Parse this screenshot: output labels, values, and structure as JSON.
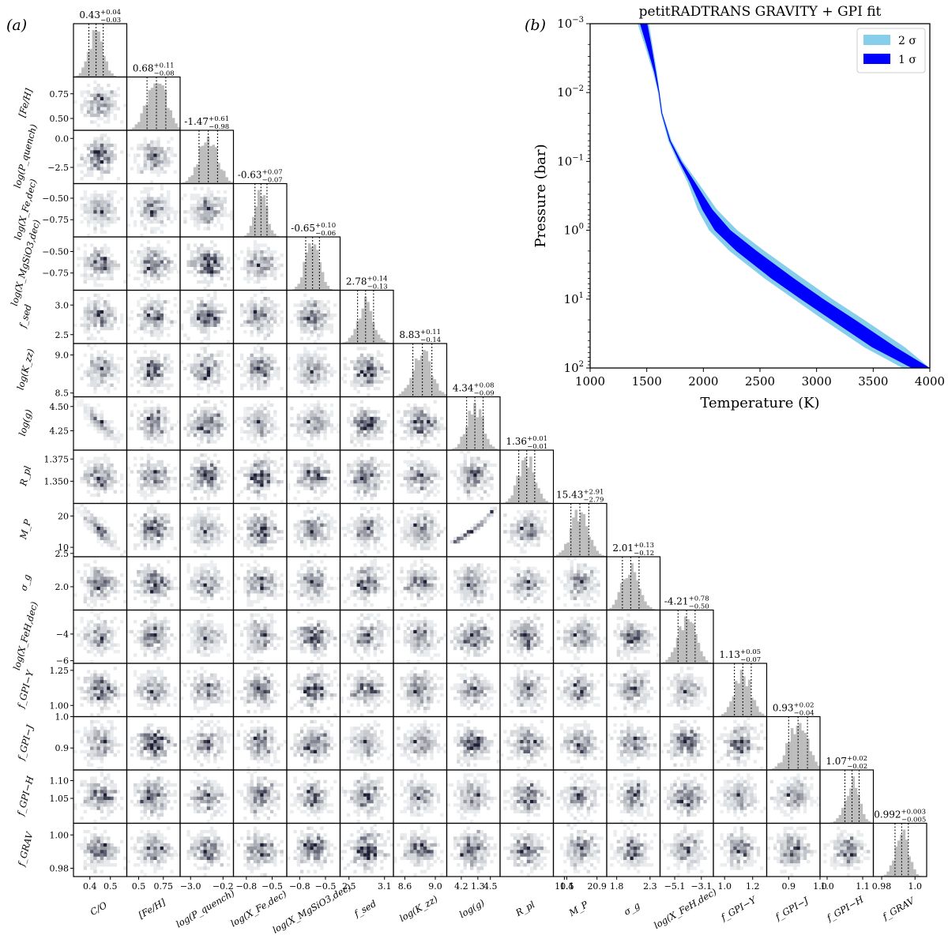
{
  "figure": {
    "panel_a_label": "(a)",
    "panel_b_label": "(b)"
  },
  "chart_data": [
    {
      "type": "corner",
      "panel": "(a)",
      "parameters": [
        {
          "label": "C/O",
          "ticks": [
            "0.4",
            "0.5"
          ],
          "tick_values": [
            0.4,
            0.5
          ],
          "range": [
            0.32,
            0.58
          ],
          "median": "0.43",
          "plus": "+0.04",
          "minus": "−0.03",
          "title_prefix": "",
          "center": 0.43,
          "sigma": 0.035
        },
        {
          "label": "[Fe/H]",
          "ticks": [
            "0.5",
            "0.75"
          ],
          "tick_values": [
            0.5,
            0.75
          ],
          "range": [
            0.38,
            0.92
          ],
          "median": "0.68",
          "plus": "+0.11",
          "minus": "−0.08",
          "title_prefix": "",
          "center": 0.68,
          "sigma": 0.095
        },
        {
          "label": "log(P_quench)",
          "ticks": [
            "−3.0",
            "−0.2"
          ],
          "tick_values": [
            -3.0,
            -0.2
          ],
          "range": [
            -3.9,
            0.7
          ],
          "median": "-1.47",
          "plus": "+0.61",
          "minus": "−0.98",
          "title_prefix": "",
          "center": -1.47,
          "sigma": 0.8
        },
        {
          "label": "log(X_Fe,dec)",
          "ticks": [
            "−0.8",
            "−0.5"
          ],
          "tick_values": [
            -0.8,
            -0.5
          ],
          "range": [
            -0.95,
            -0.33
          ],
          "median": "-0.63",
          "plus": "+0.07",
          "minus": "−0.07",
          "title_prefix": "",
          "center": -0.63,
          "sigma": 0.07
        },
        {
          "label": "log(X_MgSiO3,dec)",
          "ticks": [
            "−0.8",
            "−0.5"
          ],
          "tick_values": [
            -0.8,
            -0.5
          ],
          "range": [
            -0.95,
            -0.33
          ],
          "median": "-0.65",
          "plus": "+0.10",
          "minus": "−0.06",
          "title_prefix": "",
          "center": -0.65,
          "sigma": 0.08
        },
        {
          "label": "f_sed",
          "ticks": [
            "2.5",
            "3.1"
          ],
          "tick_values": [
            2.5,
            3.1
          ],
          "range": [
            2.35,
            3.25
          ],
          "median": "2.78",
          "plus": "+0.14",
          "minus": "−0.13",
          "title_prefix": "",
          "center": 2.78,
          "sigma": 0.135
        },
        {
          "label": "log(K_zz)",
          "ticks": [
            "8.6",
            "9.0"
          ],
          "tick_values": [
            8.6,
            9.0
          ],
          "range": [
            8.45,
            9.15
          ],
          "median": "8.83",
          "plus": "+0.11",
          "minus": "−0.14",
          "title_prefix": "",
          "center": 8.83,
          "sigma": 0.125
        },
        {
          "label": "log(g)",
          "ticks": [
            "4.2",
            "4.5"
          ],
          "tick_values": [
            4.2,
            4.5
          ],
          "range": [
            4.05,
            4.6
          ],
          "median": "4.34",
          "plus": "+0.08",
          "minus": "−0.09",
          "title_prefix": "",
          "center": 4.34,
          "sigma": 0.085
        },
        {
          "label": "R_pl",
          "ticks": [
            "1.3",
            "1.4"
          ],
          "tick_values": [
            1.3,
            1.4
          ],
          "range": [
            1.325,
            1.385
          ],
          "median": "1.36",
          "plus": "+0.01",
          "minus": "−0.01",
          "title_prefix": "",
          "center": 1.355,
          "sigma": 0.009
        },
        {
          "label": "M_P",
          "ticks": [
            "10.5",
            "20.9"
          ],
          "tick_values": [
            10.5,
            20.9
          ],
          "range": [
            7.0,
            24.0
          ],
          "median": "15.43",
          "plus": "+2.91",
          "minus": "−2.79",
          "title_prefix": "",
          "center": 15.43,
          "sigma": 2.85
        },
        {
          "label": "σ_g",
          "ticks": [
            "1.8",
            "2.3"
          ],
          "tick_values": [
            1.8,
            2.3
          ],
          "range": [
            1.65,
            2.45
          ],
          "median": "2.01",
          "plus": "+0.13",
          "minus": "−0.12",
          "title_prefix": "",
          "center": 2.01,
          "sigma": 0.125
        },
        {
          "label": "log(X_FeH,dec)",
          "ticks": [
            "−5.1",
            "−3.1"
          ],
          "tick_values": [
            -5.1,
            -3.1
          ],
          "range": [
            -6.2,
            -2.2
          ],
          "median": "-4.21",
          "plus": "+0.78",
          "minus": "−0.50",
          "title_prefix": "",
          "center": -4.21,
          "sigma": 0.64
        },
        {
          "label": "f_GPI−Y",
          "ticks": [
            "1.0",
            "1.2"
          ],
          "tick_values": [
            1.0,
            1.2
          ],
          "range": [
            0.92,
            1.3
          ],
          "median": "1.13",
          "plus": "+0.05",
          "minus": "−0.07",
          "title_prefix": "",
          "center": 1.13,
          "sigma": 0.06
        },
        {
          "label": "f_GPI−J",
          "ticks": [
            "0.9",
            "1.0"
          ],
          "tick_values": [
            0.9,
            1.0
          ],
          "range": [
            0.83,
            1.0
          ],
          "median": "0.93",
          "plus": "+0.02",
          "minus": "−0.04",
          "title_prefix": "",
          "center": 0.93,
          "sigma": 0.03
        },
        {
          "label": "f_GPI−H",
          "ticks": [
            "1.0",
            "1.1"
          ],
          "tick_values": [
            1.0,
            1.1
          ],
          "range": [
            0.98,
            1.13
          ],
          "median": "1.07",
          "plus": "+0.02",
          "minus": "−0.02",
          "title_prefix": "",
          "center": 1.07,
          "sigma": 0.02
        },
        {
          "label": "f_GRAV",
          "ticks": [
            "0.98",
            "1.0"
          ],
          "tick_values": [
            0.98,
            1.0
          ],
          "range": [
            0.975,
            1.007
          ],
          "median": "0.992",
          "plus": "+0.003",
          "minus": "−0.005",
          "title_prefix": "",
          "center": 0.992,
          "sigma": 0.004
        }
      ],
      "row_ticks": [
        null,
        {
          "labels": [
            "0.75",
            "0.50"
          ],
          "values": [
            0.75,
            0.5
          ]
        },
        {
          "labels": [
            "0.0",
            "−2.5"
          ],
          "values": [
            0.0,
            -2.5
          ]
        },
        {
          "labels": [
            "−0.50",
            "−0.75"
          ],
          "values": [
            -0.5,
            -0.75
          ]
        },
        {
          "labels": [
            "−0.50",
            "−0.75"
          ],
          "values": [
            -0.5,
            -0.75
          ]
        },
        {
          "labels": [
            "3.0",
            "2.5"
          ],
          "values": [
            3.0,
            2.5
          ]
        },
        {
          "labels": [
            "9.0",
            "8.5"
          ],
          "values": [
            9.0,
            8.5
          ]
        },
        {
          "labels": [
            "4.50",
            "4.25"
          ],
          "values": [
            4.5,
            4.25
          ]
        },
        {
          "labels": [
            "1.375",
            "1.350"
          ],
          "values": [
            1.375,
            1.35
          ]
        },
        {
          "labels": [
            "20",
            "10"
          ],
          "values": [
            20,
            10
          ]
        },
        {
          "labels": [
            "2.5",
            "2.0"
          ],
          "values": [
            2.5,
            2.0
          ]
        },
        {
          "labels": [
            "−4",
            "−6"
          ],
          "values": [
            -4,
            -6
          ]
        },
        {
          "labels": [
            "1.25",
            "1.00"
          ],
          "values": [
            1.25,
            1.0
          ]
        },
        {
          "labels": [
            "1.0",
            "0.9"
          ],
          "values": [
            1.0,
            0.9
          ]
        },
        {
          "labels": [
            "1.10",
            "1.05"
          ],
          "values": [
            1.1,
            1.05
          ]
        },
        {
          "labels": [
            "1.00",
            "0.98"
          ],
          "values": [
            1.0,
            0.98
          ]
        }
      ],
      "correlated_pairs": [
        {
          "x": "C/O",
          "y": "log(g)",
          "type": "negative"
        },
        {
          "x": "C/O",
          "y": "M_P",
          "type": "negative"
        },
        {
          "x": "log(g)",
          "y": "M_P",
          "type": "tight-positive"
        }
      ]
    },
    {
      "type": "area",
      "panel": "(b)",
      "title": "petitRADTRANS GRAVITY + GPI fit",
      "xlabel": "Temperature (K)",
      "ylabel": "Pressure (bar)",
      "xlim": [
        1000,
        4000
      ],
      "ylim": [
        0.001,
        100
      ],
      "yscale": "log",
      "yinverted": true,
      "xticks": [
        "1000",
        "1500",
        "2000",
        "2500",
        "3000",
        "3500",
        "4000"
      ],
      "xtick_values": [
        1000,
        1500,
        2000,
        2500,
        3000,
        3500,
        4000
      ],
      "yticks": [
        {
          "base": "10",
          "exp": "−3",
          "value": 0.001
        },
        {
          "base": "10",
          "exp": "−2",
          "value": 0.01
        },
        {
          "base": "10",
          "exp": "−1",
          "value": 0.1
        },
        {
          "base": "10",
          "exp": "0",
          "value": 1
        },
        {
          "base": "10",
          "exp": "1",
          "value": 10
        },
        {
          "base": "10",
          "exp": "2",
          "value": 100
        }
      ],
      "legend_position": "top-right",
      "colors": {
        "sigma2": "#87ceeb",
        "sigma1": "#0000ff"
      },
      "series": [
        {
          "name": "2 σ",
          "pressure": [
            0.001,
            0.002,
            0.005,
            0.01,
            0.02,
            0.05,
            0.1,
            0.2,
            0.5,
            1,
            2,
            5,
            10,
            20,
            50,
            100
          ],
          "T_low": [
            1420,
            1480,
            1555,
            1600,
            1625,
            1690,
            1770,
            1860,
            1950,
            2050,
            2230,
            2540,
            2800,
            3060,
            3420,
            3760
          ],
          "T_high": [
            1520,
            1550,
            1590,
            1615,
            1640,
            1720,
            1820,
            1950,
            2120,
            2300,
            2540,
            2880,
            3140,
            3420,
            3780,
            4000
          ]
        },
        {
          "name": "1 σ",
          "pressure": [
            0.001,
            0.002,
            0.005,
            0.01,
            0.02,
            0.05,
            0.1,
            0.2,
            0.5,
            1,
            2,
            5,
            10,
            20,
            50,
            100
          ],
          "T_low": [
            1440,
            1495,
            1565,
            1605,
            1630,
            1700,
            1785,
            1880,
            1990,
            2100,
            2290,
            2600,
            2860,
            3130,
            3490,
            3840
          ],
          "T_high": [
            1505,
            1540,
            1582,
            1612,
            1636,
            1710,
            1805,
            1925,
            2080,
            2240,
            2470,
            2800,
            3060,
            3340,
            3700,
            4000
          ]
        }
      ]
    }
  ]
}
